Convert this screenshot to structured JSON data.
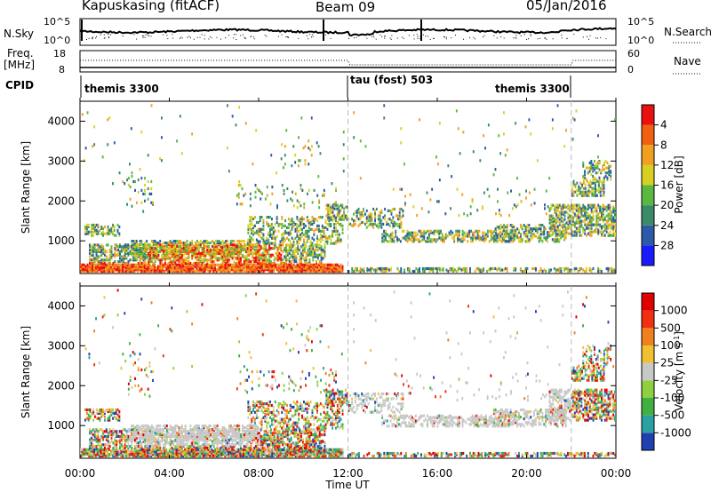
{
  "header": {
    "station": "Kapuskasing (fitACF)",
    "beam": "Beam 09",
    "date": "05/Jan/2016"
  },
  "summary_panel": {
    "nsky_label": "N.Sky",
    "nsky_ticks": [
      "10^5",
      "10^0"
    ],
    "nsearch_label": "N.Search",
    "nsearch_ticks": [
      "10^5",
      "10^0"
    ],
    "freq_label_1": "Freq.",
    "freq_label_2": "[MHz]",
    "freq_ticks": [
      "18",
      "8"
    ],
    "nave_label": "Nave",
    "nave_ticks": [
      "60",
      "0"
    ],
    "cpid_label": "CPID",
    "cpid_segments": [
      {
        "name": "themis 3300",
        "start_hour": 0,
        "end_hour": 12
      },
      {
        "name": "tau (fost) 503",
        "start_hour": 12,
        "end_hour": 22
      },
      {
        "name": "themis 3300",
        "start_hour": 22,
        "end_hour": 24
      }
    ]
  },
  "chart_data": [
    {
      "type": "heatmap",
      "panel": "power",
      "ylabel": "Slant Range [km]",
      "ylim": [
        180,
        4500
      ],
      "yticks": [
        1000,
        2000,
        3000,
        4000
      ],
      "xlim_hours": [
        0,
        24
      ],
      "xticks": [
        "00:00",
        "04:00",
        "08:00",
        "12:00",
        "16:00",
        "20:00",
        "00:00"
      ],
      "colorbar": {
        "label": "Power [dB]",
        "ticks": [
          "4",
          "8",
          "12",
          "16",
          "20",
          "24",
          "28"
        ],
        "colors": [
          "#1a1aff",
          "#2a5aa8",
          "#3a8a6a",
          "#5ab840",
          "#d8d020",
          "#f0a020",
          "#f06010",
          "#e81010"
        ]
      },
      "mode_change_hours": [
        12,
        22
      ]
    },
    {
      "type": "heatmap",
      "panel": "velocity",
      "ylabel": "Slant Range [km]",
      "ylim": [
        180,
        4500
      ],
      "yticks": [
        1000,
        2000,
        3000,
        4000
      ],
      "xlim_hours": [
        0,
        24
      ],
      "xticks": [
        "00:00",
        "04:00",
        "08:00",
        "12:00",
        "16:00",
        "20:00",
        "00:00"
      ],
      "xlabel": "Time UT",
      "colorbar": {
        "label": "Velocity [m s",
        "label_sup": "-1",
        "label_end": "]",
        "ticks": [
          "1000",
          "500",
          "100",
          "25",
          "-25",
          "-100",
          "-500",
          "-1000"
        ],
        "colors": [
          "#2040b0",
          "#2aa0a0",
          "#40b040",
          "#90d040",
          "#c8c8c8",
          "#f0c030",
          "#f08020",
          "#f03010",
          "#e00000"
        ]
      },
      "mode_change_hours": [
        12,
        22
      ]
    }
  ]
}
